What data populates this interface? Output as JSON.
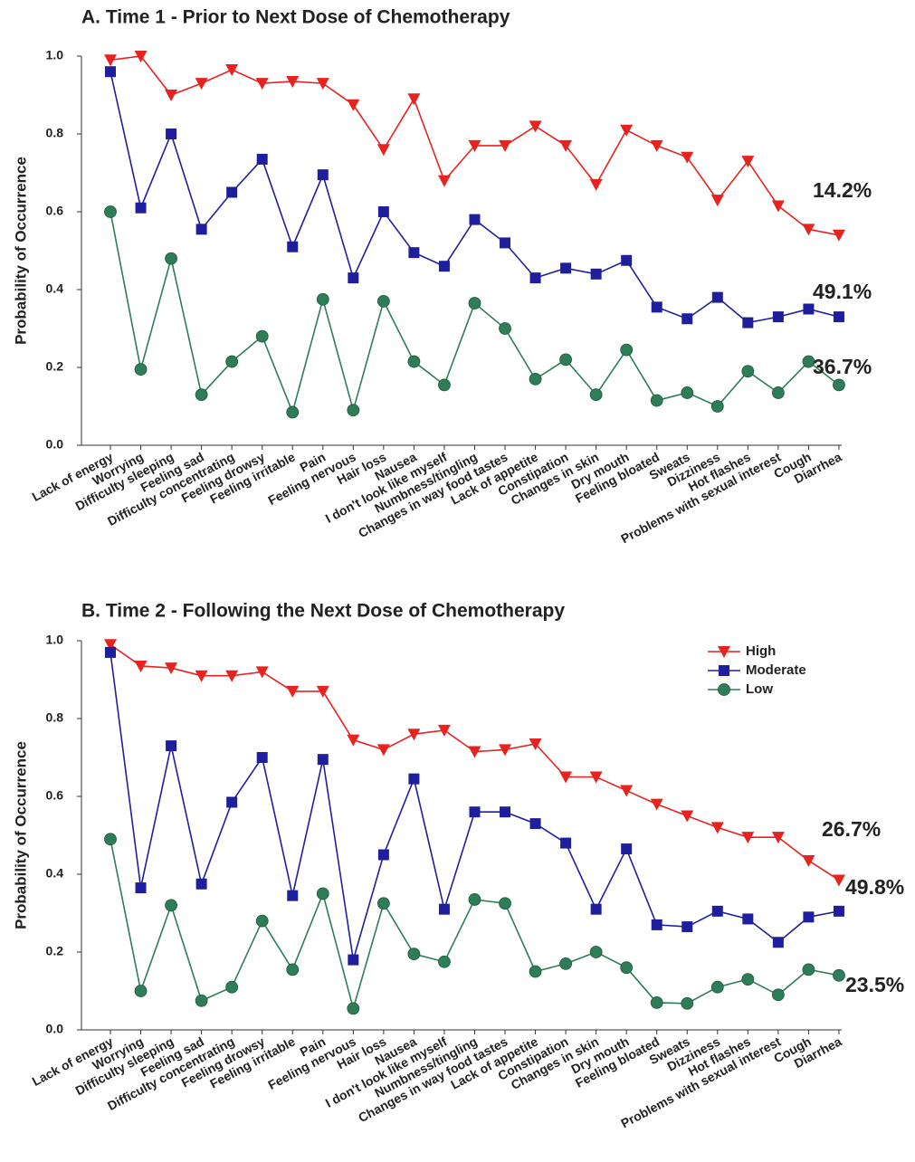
{
  "chart_data": [
    {
      "type": "line",
      "title": "A. Time 1 - Prior to Next Dose of Chemotherapy",
      "y_label": "Probability of Occurrence",
      "categories": [
        "Lack of energy",
        "Worrying",
        "Difficulty sleeping",
        "Feeling sad",
        "Difficulty concentrating",
        "Feeling drowsy",
        "Feeling irritable",
        "Pain",
        "Feeling nervous",
        "Hair loss",
        "Nausea",
        "I don't look like myself",
        "Numbness/tingling",
        "Changes in way food tastes",
        "Lack of appetite",
        "Constipation",
        "Changes in skin",
        "Dry mouth",
        "Feeling bloated",
        "Sweats",
        "Dizziness",
        "Hot flashes",
        "Problems with sexual interest",
        "Cough",
        "Diarrhea"
      ],
      "series": [
        {
          "name": "High",
          "color": "#e8221f",
          "marker": "triangle-down",
          "values": [
            0.99,
            1.0,
            0.9,
            0.93,
            0.965,
            0.93,
            0.935,
            0.93,
            0.875,
            0.76,
            0.89,
            0.68,
            0.77,
            0.77,
            0.82,
            0.77,
            0.67,
            0.81,
            0.77,
            0.74,
            0.63,
            0.73,
            0.615,
            0.555,
            0.54
          ]
        },
        {
          "name": "Moderate",
          "color": "#1f1f9e",
          "marker": "square",
          "values": [
            0.96,
            0.61,
            0.8,
            0.555,
            0.65,
            0.735,
            0.51,
            0.695,
            0.43,
            0.6,
            0.495,
            0.46,
            0.58,
            0.52,
            0.43,
            0.455,
            0.44,
            0.475,
            0.355,
            0.325,
            0.38,
            0.315,
            0.33,
            0.35,
            0.33
          ]
        },
        {
          "name": "Low",
          "color": "#2f7d58",
          "marker": "circle",
          "values": [
            0.6,
            0.195,
            0.48,
            0.13,
            0.215,
            0.28,
            0.085,
            0.375,
            0.09,
            0.37,
            0.215,
            0.155,
            0.365,
            0.3,
            0.17,
            0.22,
            0.13,
            0.245,
            0.115,
            0.135,
            0.1,
            0.19,
            0.135,
            0.215,
            0.155
          ]
        }
      ],
      "annotations": [
        "14.2%",
        "49.1%",
        "36.7%"
      ],
      "ylim": [
        0,
        1
      ],
      "yticks": [
        {
          "value": 0,
          "label": "0.0"
        },
        0.2,
        0.4,
        0.6,
        0.8,
        {
          "value": 1,
          "label": "1.0"
        }
      ]
    },
    {
      "type": "line",
      "title": "B. Time 2 - Following the Next Dose of Chemotherapy",
      "y_label": "Probability of Occurrence",
      "categories": [
        "Lack of energy",
        "Worrying",
        "Difficulty sleeping",
        "Feeling sad",
        "Difficulty concentrating",
        "Feeling drowsy",
        "Feeling irritable",
        "Pain",
        "Feeling nervous",
        "Hair loss",
        "Nausea",
        "I don't look like myself",
        "Numbness/tingling",
        "Changes in way food tastes",
        "Lack of appetite",
        "Constipation",
        "Changes in skin",
        "Dry mouth",
        "Feeling bloated",
        "Sweats",
        "Dizziness",
        "Hot flashes",
        "Problems with sexual interest",
        "Cough",
        "Diarrhea"
      ],
      "series": [
        {
          "name": "High",
          "color": "#e8221f",
          "marker": "triangle-down",
          "values": [
            0.99,
            0.935,
            0.93,
            0.91,
            0.91,
            0.92,
            0.87,
            0.87,
            0.745,
            0.72,
            0.76,
            0.77,
            0.715,
            0.72,
            0.735,
            0.65,
            0.65,
            0.615,
            0.58,
            0.55,
            0.52,
            0.495,
            0.495,
            0.435,
            0.385
          ]
        },
        {
          "name": "Moderate",
          "color": "#1f1f9e",
          "marker": "square",
          "values": [
            0.97,
            0.365,
            0.73,
            0.375,
            0.585,
            0.7,
            0.345,
            0.695,
            0.18,
            0.45,
            0.645,
            0.31,
            0.56,
            0.56,
            0.53,
            0.48,
            0.31,
            0.465,
            0.27,
            0.265,
            0.305,
            0.285,
            0.225,
            0.29,
            0.305
          ]
        },
        {
          "name": "Low",
          "color": "#2f7d58",
          "marker": "circle",
          "values": [
            0.49,
            0.1,
            0.32,
            0.075,
            0.11,
            0.28,
            0.155,
            0.35,
            0.055,
            0.325,
            0.195,
            0.175,
            0.335,
            0.325,
            0.15,
            0.17,
            0.2,
            0.16,
            0.07,
            0.068,
            0.11,
            0.13,
            0.09,
            0.155,
            0.14
          ]
        }
      ],
      "annotations": [
        "26.7%",
        "49.8%",
        "23.5%"
      ],
      "legend": "top-right",
      "ylim": [
        0,
        1
      ],
      "yticks": [
        {
          "value": 0,
          "label": "0.0"
        },
        0.2,
        0.4,
        0.6,
        0.8,
        {
          "value": 1,
          "label": "1.0"
        }
      ]
    }
  ]
}
